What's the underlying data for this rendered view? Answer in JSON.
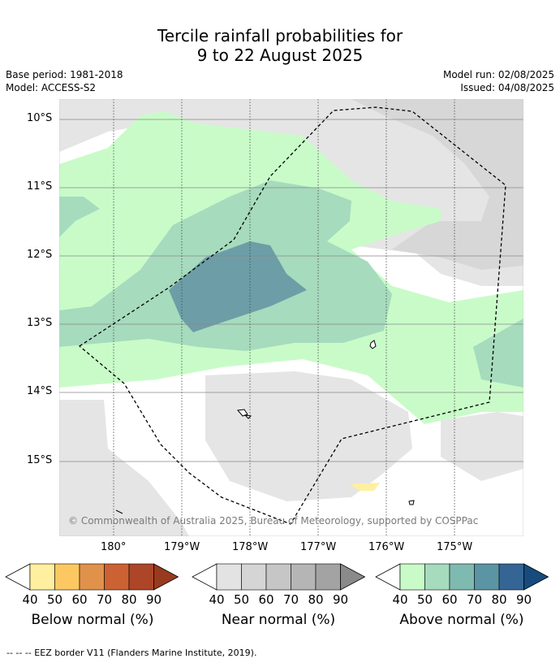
{
  "title": {
    "line1": "Tercile rainfall probabilities for",
    "line2": "9 to 22 August 2025"
  },
  "meta": {
    "base_period": "Base period: 1981-2018",
    "model": "Model: ACCESS-S2",
    "model_run": "Model run: 02/08/2025",
    "issued": "Issued: 04/08/2025"
  },
  "map": {
    "lat_labels": [
      "10°S",
      "11°S",
      "12°S",
      "13°S",
      "14°S",
      "15°S"
    ],
    "lon_labels": [
      "180°",
      "179°W",
      "178°W",
      "177°W",
      "176°W",
      "175°W"
    ],
    "credit": "© Commonwealth of Australia 2025, Bureau of Meteorology, supported by COSPPac"
  },
  "colorbars": [
    {
      "label": "Below normal (%)",
      "ticks": [
        "40",
        "50",
        "60",
        "70",
        "80",
        "90"
      ],
      "colors": [
        "#fff0a0",
        "#fdc861",
        "#e0924a",
        "#cc6233",
        "#ad4628",
        "#983a1e"
      ]
    },
    {
      "label": "Near normal (%)",
      "ticks": [
        "40",
        "50",
        "60",
        "70",
        "80",
        "90"
      ],
      "colors": [
        "#e3e3e3",
        "#d5d5d5",
        "#c6c6c6",
        "#b5b5b5",
        "#a3a3a3",
        "#8a8a8a"
      ]
    },
    {
      "label": "Above normal (%)",
      "ticks": [
        "40",
        "50",
        "60",
        "70",
        "80",
        "90"
      ],
      "colors": [
        "#c9fbc9",
        "#a6dbbd",
        "#7fbab0",
        "#5b94a3",
        "#356595",
        "#164b7e"
      ]
    }
  ],
  "footer": "--  --  -- EEZ border V11 (Flanders Marine Institute, 2019)."
}
